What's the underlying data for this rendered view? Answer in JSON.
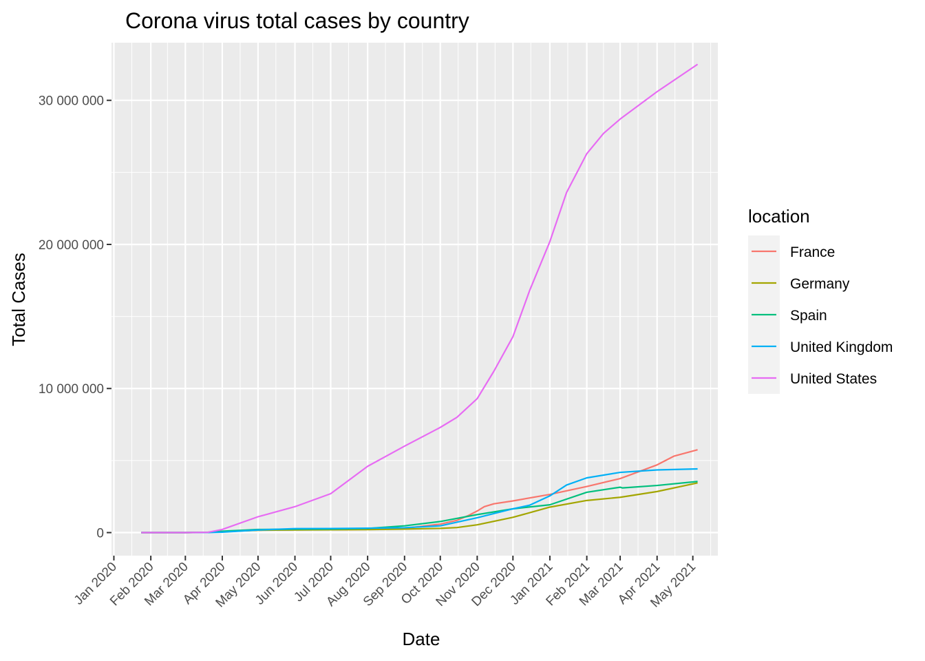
{
  "chart_data": {
    "type": "line",
    "title": "Corona virus total cases by country",
    "xlabel": "Date",
    "ylabel": "Total Cases",
    "x_tick_labels": [
      "Jan 2020",
      "Feb 2020",
      "Mar 2020",
      "Apr 2020",
      "May 2020",
      "Jun 2020",
      "Jul 2020",
      "Aug 2020",
      "Sep 2020",
      "Oct 2020",
      "Nov 2020",
      "Dec 2020",
      "Jan 2021",
      "Feb 2021",
      "Mar 2021",
      "Apr 2021",
      "May 2021"
    ],
    "y_tick_labels": [
      "0",
      "10 000 000",
      "20 000 000",
      "30 000 000"
    ],
    "y_ticks": [
      0,
      10000000,
      20000000,
      30000000
    ],
    "xlim": [
      "2019-12-30",
      "2021-05-22"
    ],
    "ylim": [
      -1600000,
      34000000
    ],
    "grid": true,
    "legend": {
      "title": "location",
      "position": "right"
    },
    "series": [
      {
        "name": "France",
        "color": "#F8766D",
        "points": [
          [
            "2020-01-24",
            0
          ],
          [
            "2020-03-01",
            100
          ],
          [
            "2020-03-20",
            12000
          ],
          [
            "2020-04-01",
            57000
          ],
          [
            "2020-05-01",
            168000
          ],
          [
            "2020-06-01",
            189000
          ],
          [
            "2020-07-01",
            202000
          ],
          [
            "2020-08-01",
            225000
          ],
          [
            "2020-09-01",
            300000
          ],
          [
            "2020-10-01",
            590000
          ],
          [
            "2020-10-15",
            850000
          ],
          [
            "2020-10-25",
            1200000
          ],
          [
            "2020-11-01",
            1500000
          ],
          [
            "2020-11-07",
            1800000
          ],
          [
            "2020-11-15",
            2000000
          ],
          [
            "2020-12-01",
            2200000
          ],
          [
            "2021-01-01",
            2650000
          ],
          [
            "2021-02-01",
            3200000
          ],
          [
            "2021-03-01",
            3750000
          ],
          [
            "2021-04-01",
            4700000
          ],
          [
            "2021-04-15",
            5300000
          ],
          [
            "2021-05-05",
            5750000
          ]
        ]
      },
      {
        "name": "Germany",
        "color": "#A3A500",
        "points": [
          [
            "2020-01-24",
            0
          ],
          [
            "2020-03-01",
            100
          ],
          [
            "2020-03-20",
            20000
          ],
          [
            "2020-04-01",
            73000
          ],
          [
            "2020-05-01",
            163000
          ],
          [
            "2020-06-01",
            183000
          ],
          [
            "2020-07-01",
            195000
          ],
          [
            "2020-08-01",
            210000
          ],
          [
            "2020-09-01",
            245000
          ],
          [
            "2020-10-01",
            295000
          ],
          [
            "2020-10-15",
            350000
          ],
          [
            "2020-11-01",
            540000
          ],
          [
            "2020-12-01",
            1060000
          ],
          [
            "2021-01-01",
            1770000
          ],
          [
            "2021-02-01",
            2230000
          ],
          [
            "2021-03-01",
            2450000
          ],
          [
            "2021-04-01",
            2850000
          ],
          [
            "2021-05-05",
            3450000
          ]
        ]
      },
      {
        "name": "Spain",
        "color": "#00BF7D",
        "points": [
          [
            "2020-01-24",
            0
          ],
          [
            "2020-03-01",
            80
          ],
          [
            "2020-03-20",
            20000
          ],
          [
            "2020-04-01",
            100000
          ],
          [
            "2020-05-01",
            215000
          ],
          [
            "2020-06-01",
            240000
          ],
          [
            "2020-07-01",
            250000
          ],
          [
            "2020-08-01",
            290000
          ],
          [
            "2020-09-01",
            470000
          ],
          [
            "2020-10-01",
            770000
          ],
          [
            "2020-11-01",
            1250000
          ],
          [
            "2020-12-01",
            1650000
          ],
          [
            "2021-01-01",
            1930000
          ],
          [
            "2021-02-01",
            2800000
          ],
          [
            "2021-03-01",
            3150000
          ],
          [
            "2021-03-03",
            3100000
          ],
          [
            "2021-04-01",
            3270000
          ],
          [
            "2021-05-05",
            3550000
          ]
        ]
      },
      {
        "name": "United Kingdom",
        "color": "#00B0F6",
        "points": [
          [
            "2020-01-24",
            0
          ],
          [
            "2020-03-01",
            30
          ],
          [
            "2020-03-20",
            4000
          ],
          [
            "2020-04-01",
            30000
          ],
          [
            "2020-05-01",
            180000
          ],
          [
            "2020-06-01",
            278000
          ],
          [
            "2020-07-01",
            285000
          ],
          [
            "2020-08-01",
            305000
          ],
          [
            "2020-09-01",
            337000
          ],
          [
            "2020-10-01",
            470000
          ],
          [
            "2020-11-01",
            1030000
          ],
          [
            "2020-12-01",
            1650000
          ],
          [
            "2020-12-15",
            1900000
          ],
          [
            "2021-01-01",
            2550000
          ],
          [
            "2021-01-15",
            3300000
          ],
          [
            "2021-02-01",
            3800000
          ],
          [
            "2021-03-01",
            4180000
          ],
          [
            "2021-04-01",
            4350000
          ],
          [
            "2021-05-05",
            4420000
          ]
        ]
      },
      {
        "name": "United States",
        "color": "#E76BF3",
        "points": [
          [
            "2020-01-24",
            0
          ],
          [
            "2020-03-01",
            70
          ],
          [
            "2020-03-20",
            20000
          ],
          [
            "2020-04-01",
            220000
          ],
          [
            "2020-05-01",
            1100000
          ],
          [
            "2020-06-01",
            1800000
          ],
          [
            "2020-07-01",
            2700000
          ],
          [
            "2020-08-01",
            4600000
          ],
          [
            "2020-09-01",
            6000000
          ],
          [
            "2020-10-01",
            7300000
          ],
          [
            "2020-10-15",
            8000000
          ],
          [
            "2020-11-01",
            9300000
          ],
          [
            "2020-11-15",
            11200000
          ],
          [
            "2020-12-01",
            13600000
          ],
          [
            "2020-12-15",
            16800000
          ],
          [
            "2021-01-01",
            20200000
          ],
          [
            "2021-01-15",
            23600000
          ],
          [
            "2021-02-01",
            26300000
          ],
          [
            "2021-02-15",
            27700000
          ],
          [
            "2021-03-01",
            28700000
          ],
          [
            "2021-04-01",
            30600000
          ],
          [
            "2021-05-05",
            32500000
          ]
        ]
      }
    ]
  }
}
